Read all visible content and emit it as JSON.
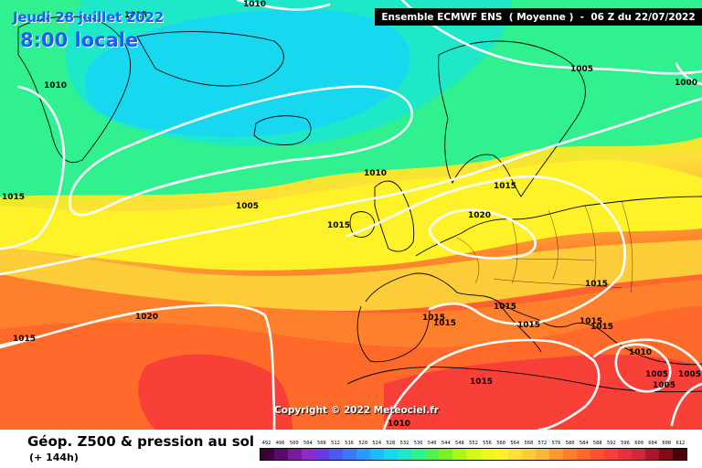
{
  "date_label": "Jeudi 28 juillet 2022",
  "time_label": "8:00 locale",
  "header": "Ensemble ECMWF ENS  ( Moyenne )  -  06 Z du 22/07/2022",
  "copyright": "Copyright © 2022 Meteociel.fr",
  "footer": {
    "title": "Géop. Z500 & pression au sol",
    "subtitle": "(+ 144h)"
  },
  "legend": {
    "values": [
      "492",
      "496",
      "500",
      "504",
      "508",
      "512",
      "516",
      "520",
      "524",
      "528",
      "532",
      "536",
      "540",
      "544",
      "548",
      "552",
      "556",
      "560",
      "564",
      "568",
      "572",
      "576",
      "580",
      "584",
      "588",
      "592",
      "596",
      "600",
      "604",
      "608",
      "612"
    ],
    "colors": [
      "#3a0038",
      "#5a0a6e",
      "#7a1aa0",
      "#8c2cc8",
      "#6a3ae0",
      "#4a5af0",
      "#3a7af5",
      "#2a9cff",
      "#1ebcff",
      "#18d8f0",
      "#1ee8c8",
      "#30f090",
      "#52f050",
      "#7af028",
      "#a8f818",
      "#d0fa18",
      "#f0f818",
      "#fff228",
      "#ffe038",
      "#ffcc3a",
      "#ffb43a",
      "#ff9a32",
      "#ff802c",
      "#ff6a2a",
      "#ff5030",
      "#f84038",
      "#e83040",
      "#d02838",
      "#a81828",
      "#800c18",
      "#500008"
    ]
  },
  "isobars": {
    "l1010_nw": "1010",
    "l1015_top": "1015",
    "l1010_top": "1010",
    "l1005_ne": "1005",
    "l1000_ne": "1000",
    "l1015_w": "1015",
    "l1005_mid": "1005",
    "l1010_mid": "1010",
    "l1015_uk": "1015",
    "l1015_de": "1015",
    "l1020_fr": "1020",
    "l1020_atl": "1020",
    "l1015_sw": "1015",
    "l1015_sp": "1015",
    "l1015_med1": "1015",
    "l1015_med2": "1015",
    "l1015_ita": "1015",
    "l1015_bal": "1015",
    "l1015_gr": "1015",
    "l1015_gr2": "1015",
    "l1010_tur": "1010",
    "l1005_tur1": "1005",
    "l1005_tur2": "1005",
    "l1005_tur3": "1005",
    "l1015_lib": "1015",
    "l1010_bot": "1010"
  }
}
